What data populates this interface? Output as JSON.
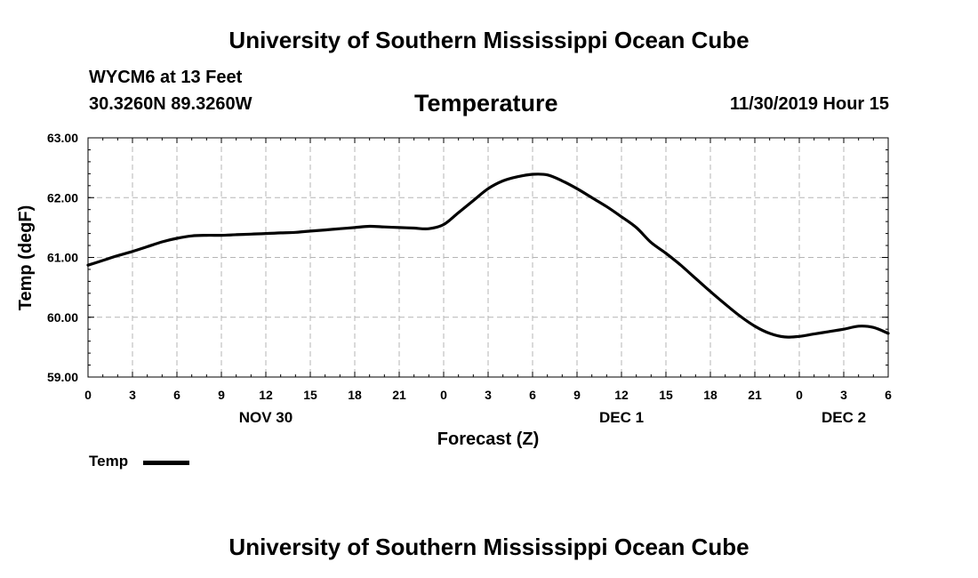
{
  "header": {
    "title": "University of Southern Mississippi Ocean Cube",
    "station": "WYCM6 at 13 Feet",
    "coords": "30.3260N 89.3260W",
    "plot_title": "Temperature",
    "datetime": "11/30/2019 Hour 15"
  },
  "footer": {
    "title": "University of Southern Mississippi Ocean Cube"
  },
  "legend": {
    "label": "Temp"
  },
  "chart_data": {
    "type": "line",
    "title": "Temperature",
    "xlabel": "Forecast (Z)",
    "ylabel": "Temp (degF)",
    "xlim": [
      0,
      54
    ],
    "ylim": [
      59,
      63
    ],
    "grid": true,
    "line_color": "#000000",
    "yticks": [
      59,
      60,
      61,
      62,
      63
    ],
    "ytick_labels": [
      "59.00",
      "60.00",
      "61.00",
      "62.00",
      "63.00"
    ],
    "xticks": [
      0,
      3,
      6,
      9,
      12,
      15,
      18,
      21,
      24,
      27,
      30,
      33,
      36,
      39,
      42,
      45,
      48,
      51,
      54
    ],
    "xtick_labels": [
      "0",
      "3",
      "6",
      "9",
      "12",
      "15",
      "18",
      "21",
      "0",
      "3",
      "6",
      "9",
      "12",
      "15",
      "18",
      "21",
      "0",
      "3",
      "6"
    ],
    "day_labels": [
      {
        "x": 12,
        "label": "NOV 30"
      },
      {
        "x": 36,
        "label": "DEC 1"
      },
      {
        "x": 51,
        "label": "DEC 2"
      }
    ],
    "series": [
      {
        "name": "Temp",
        "x": [
          0,
          1,
          2,
          3,
          4,
          5,
          6,
          7,
          8,
          9,
          10,
          11,
          12,
          13,
          14,
          15,
          16,
          17,
          18,
          19,
          20,
          21,
          22,
          23,
          24,
          25,
          26,
          27,
          28,
          29,
          30,
          31,
          32,
          33,
          34,
          35,
          36,
          37,
          38,
          39,
          40,
          41,
          42,
          43,
          44,
          45,
          46,
          47,
          48,
          49,
          50,
          51,
          52,
          53,
          54
        ],
        "values": [
          60.87,
          60.95,
          61.03,
          61.1,
          61.18,
          61.26,
          61.32,
          61.36,
          61.37,
          61.37,
          61.38,
          61.39,
          61.4,
          61.41,
          61.42,
          61.44,
          61.46,
          61.48,
          61.5,
          61.52,
          61.51,
          61.5,
          61.49,
          61.48,
          61.55,
          61.75,
          61.95,
          62.15,
          62.28,
          62.35,
          62.39,
          62.38,
          62.28,
          62.15,
          62.0,
          61.85,
          61.68,
          61.5,
          61.25,
          61.07,
          60.87,
          60.65,
          60.43,
          60.22,
          60.02,
          59.85,
          59.73,
          59.67,
          59.68,
          59.72,
          59.76,
          59.8,
          59.85,
          59.83,
          59.73
        ]
      }
    ]
  }
}
